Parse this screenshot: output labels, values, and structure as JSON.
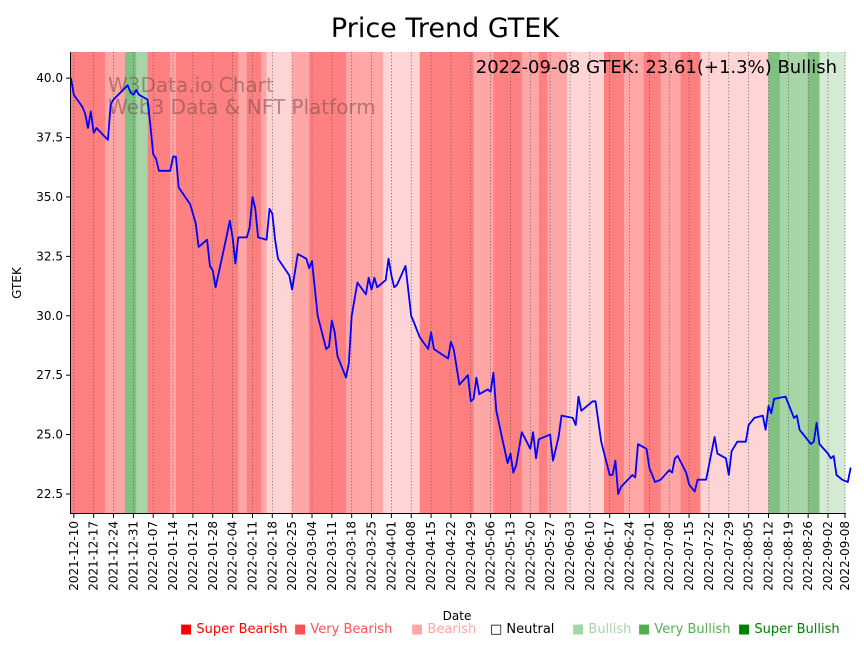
{
  "chart_data": {
    "type": "line",
    "title": "Price Trend GTEK",
    "xlabel": "Date",
    "ylabel": "GTEK",
    "ylim": [
      21.7,
      41.1
    ],
    "xlim": [
      "2021-12-09",
      "2022-09-08"
    ],
    "yticks": [
      22.5,
      25.0,
      27.5,
      30.0,
      32.5,
      35.0,
      37.5,
      40.0
    ],
    "ytick_labels": [
      "22.5",
      "25.0",
      "27.5",
      "30.0",
      "32.5",
      "35.0",
      "37.5",
      "40.0"
    ],
    "xticks": [
      "2021-12-10",
      "2021-12-17",
      "2021-12-24",
      "2021-12-31",
      "2022-01-07",
      "2022-01-14",
      "2022-01-21",
      "2022-01-28",
      "2022-02-04",
      "2022-02-11",
      "2022-02-18",
      "2022-02-25",
      "2022-03-04",
      "2022-03-11",
      "2022-03-18",
      "2022-03-25",
      "2022-04-01",
      "2022-04-08",
      "2022-04-15",
      "2022-04-22",
      "2022-04-29",
      "2022-05-06",
      "2022-05-13",
      "2022-05-20",
      "2022-05-27",
      "2022-06-03",
      "2022-06-10",
      "2022-06-17",
      "2022-06-24",
      "2022-07-01",
      "2022-07-08",
      "2022-07-15",
      "2022-07-22",
      "2022-07-29",
      "2022-08-05",
      "2022-08-12",
      "2022-08-19",
      "2022-08-26",
      "2022-09-02",
      "2022-09-08"
    ],
    "grid": "vertical dotted at x ticks",
    "annotation": "2022-09-08 GTEK: 23.61(+1.3%) Bullish",
    "watermark": [
      "W3Data.io Chart",
      "Web3 Data & NFT Platform"
    ],
    "series": [
      {
        "name": "GTEK",
        "color": "#0000ff",
        "points": [
          [
            "2021-12-09",
            40.0
          ],
          [
            "2021-12-10",
            39.3
          ],
          [
            "2021-12-13",
            38.8
          ],
          [
            "2021-12-14",
            38.5
          ],
          [
            "2021-12-15",
            37.9
          ],
          [
            "2021-12-16",
            38.6
          ],
          [
            "2021-12-17",
            37.7
          ],
          [
            "2021-12-18",
            37.9
          ],
          [
            "2021-12-22",
            37.4
          ],
          [
            "2021-12-23",
            38.9
          ],
          [
            "2021-12-24",
            39.1
          ],
          [
            "2021-12-29",
            39.7
          ],
          [
            "2021-12-30",
            39.4
          ],
          [
            "2021-12-31",
            39.3
          ],
          [
            "2022-01-01",
            39.5
          ],
          [
            "2022-01-02",
            39.3
          ],
          [
            "2022-01-05",
            39.1
          ],
          [
            "2022-01-06",
            38.0
          ],
          [
            "2022-01-07",
            36.8
          ],
          [
            "2022-01-08",
            36.6
          ],
          [
            "2022-01-09",
            36.1
          ],
          [
            "2022-01-13",
            36.1
          ],
          [
            "2022-01-14",
            36.7
          ],
          [
            "2022-01-15",
            36.7
          ],
          [
            "2022-01-16",
            35.4
          ],
          [
            "2022-01-20",
            34.7
          ],
          [
            "2022-01-22",
            33.9
          ],
          [
            "2022-01-23",
            32.9
          ],
          [
            "2022-01-26",
            33.2
          ],
          [
            "2022-01-27",
            32.1
          ],
          [
            "2022-01-28",
            31.9
          ],
          [
            "2022-01-29",
            31.2
          ],
          [
            "2022-02-02",
            33.4
          ],
          [
            "2022-02-03",
            34.0
          ],
          [
            "2022-02-04",
            33.3
          ],
          [
            "2022-02-05",
            32.2
          ],
          [
            "2022-02-06",
            33.3
          ],
          [
            "2022-02-09",
            33.3
          ],
          [
            "2022-02-10",
            33.7
          ],
          [
            "2022-02-11",
            35.0
          ],
          [
            "2022-02-12",
            34.5
          ],
          [
            "2022-02-13",
            33.3
          ],
          [
            "2022-02-16",
            33.2
          ],
          [
            "2022-02-17",
            34.5
          ],
          [
            "2022-02-18",
            34.3
          ],
          [
            "2022-02-19",
            33.2
          ],
          [
            "2022-02-20",
            32.4
          ],
          [
            "2022-02-24",
            31.7
          ],
          [
            "2022-02-25",
            31.1
          ],
          [
            "2022-02-27",
            32.6
          ],
          [
            "2022-03-02",
            32.4
          ],
          [
            "2022-03-03",
            32.0
          ],
          [
            "2022-03-04",
            32.3
          ],
          [
            "2022-03-06",
            30.0
          ],
          [
            "2022-03-09",
            28.6
          ],
          [
            "2022-03-10",
            28.7
          ],
          [
            "2022-03-11",
            29.8
          ],
          [
            "2022-03-12",
            29.3
          ],
          [
            "2022-03-13",
            28.3
          ],
          [
            "2022-03-16",
            27.4
          ],
          [
            "2022-03-17",
            28.0
          ],
          [
            "2022-03-18",
            30.0
          ],
          [
            "2022-03-20",
            31.4
          ],
          [
            "2022-03-23",
            30.9
          ],
          [
            "2022-03-24",
            31.6
          ],
          [
            "2022-03-25",
            31.1
          ],
          [
            "2022-03-26",
            31.6
          ],
          [
            "2022-03-27",
            31.2
          ],
          [
            "2022-03-30",
            31.5
          ],
          [
            "2022-03-31",
            32.4
          ],
          [
            "2022-04-01",
            31.7
          ],
          [
            "2022-04-02",
            31.2
          ],
          [
            "2022-04-03",
            31.3
          ],
          [
            "2022-04-06",
            32.1
          ],
          [
            "2022-04-08",
            30.0
          ],
          [
            "2022-04-09",
            29.7
          ],
          [
            "2022-04-11",
            29.1
          ],
          [
            "2022-04-14",
            28.6
          ],
          [
            "2022-04-15",
            29.3
          ],
          [
            "2022-04-16",
            28.6
          ],
          [
            "2022-04-21",
            28.2
          ],
          [
            "2022-04-22",
            28.9
          ],
          [
            "2022-04-23",
            28.6
          ],
          [
            "2022-04-25",
            27.1
          ],
          [
            "2022-04-28",
            27.5
          ],
          [
            "2022-04-29",
            26.4
          ],
          [
            "2022-04-30",
            26.5
          ],
          [
            "2022-05-01",
            27.4
          ],
          [
            "2022-05-02",
            26.7
          ],
          [
            "2022-05-05",
            26.9
          ],
          [
            "2022-05-06",
            26.8
          ],
          [
            "2022-05-07",
            27.6
          ],
          [
            "2022-05-08",
            26.0
          ],
          [
            "2022-05-10",
            24.9
          ],
          [
            "2022-05-12",
            23.8
          ],
          [
            "2022-05-13",
            24.2
          ],
          [
            "2022-05-14",
            23.4
          ],
          [
            "2022-05-15",
            23.7
          ],
          [
            "2022-05-17",
            25.1
          ],
          [
            "2022-05-20",
            24.4
          ],
          [
            "2022-05-21",
            25.1
          ],
          [
            "2022-05-22",
            24.0
          ],
          [
            "2022-05-23",
            24.8
          ],
          [
            "2022-05-27",
            25.0
          ],
          [
            "2022-05-28",
            23.9
          ],
          [
            "2022-05-30",
            24.9
          ],
          [
            "2022-05-31",
            25.8
          ],
          [
            "2022-06-04",
            25.7
          ],
          [
            "2022-06-05",
            25.4
          ],
          [
            "2022-06-06",
            26.6
          ],
          [
            "2022-06-07",
            26.0
          ],
          [
            "2022-06-09",
            26.2
          ],
          [
            "2022-06-11",
            26.4
          ],
          [
            "2022-06-12",
            26.4
          ],
          [
            "2022-06-14",
            24.7
          ],
          [
            "2022-06-17",
            23.3
          ],
          [
            "2022-06-18",
            23.3
          ],
          [
            "2022-06-19",
            23.9
          ],
          [
            "2022-06-20",
            22.5
          ],
          [
            "2022-06-21",
            22.8
          ],
          [
            "2022-06-25",
            23.3
          ],
          [
            "2022-06-26",
            23.2
          ],
          [
            "2022-06-27",
            24.6
          ],
          [
            "2022-06-30",
            24.4
          ],
          [
            "2022-07-01",
            23.6
          ],
          [
            "2022-07-03",
            23.0
          ],
          [
            "2022-07-05",
            23.1
          ],
          [
            "2022-07-08",
            23.5
          ],
          [
            "2022-07-09",
            23.4
          ],
          [
            "2022-07-10",
            24.0
          ],
          [
            "2022-07-11",
            24.1
          ],
          [
            "2022-07-14",
            23.4
          ],
          [
            "2022-07-15",
            22.9
          ],
          [
            "2022-07-17",
            22.6
          ],
          [
            "2022-07-18",
            23.1
          ],
          [
            "2022-07-21",
            23.1
          ],
          [
            "2022-07-24",
            24.9
          ],
          [
            "2022-07-25",
            24.2
          ],
          [
            "2022-07-28",
            24.0
          ],
          [
            "2022-07-29",
            23.3
          ],
          [
            "2022-07-30",
            24.3
          ],
          [
            "2022-08-01",
            24.7
          ],
          [
            "2022-08-04",
            24.7
          ],
          [
            "2022-08-05",
            25.4
          ],
          [
            "2022-08-07",
            25.7
          ],
          [
            "2022-08-10",
            25.8
          ],
          [
            "2022-08-11",
            25.2
          ],
          [
            "2022-08-12",
            26.2
          ],
          [
            "2022-08-13",
            25.9
          ],
          [
            "2022-08-14",
            26.5
          ],
          [
            "2022-08-18",
            26.6
          ],
          [
            "2022-08-19",
            26.3
          ],
          [
            "2022-08-21",
            25.7
          ],
          [
            "2022-08-22",
            25.8
          ],
          [
            "2022-08-23",
            25.2
          ],
          [
            "2022-08-27",
            24.6
          ],
          [
            "2022-08-28",
            24.7
          ],
          [
            "2022-08-29",
            25.5
          ],
          [
            "2022-08-30",
            24.6
          ],
          [
            "2022-09-02",
            24.2
          ],
          [
            "2022-09-03",
            24.0
          ],
          [
            "2022-09-04",
            24.1
          ],
          [
            "2022-09-05",
            23.3
          ],
          [
            "2022-09-07",
            23.1
          ],
          [
            "2022-09-09",
            23.0
          ],
          [
            "2022-09-10",
            23.61
          ]
        ]
      }
    ],
    "sentiment_bands": [
      {
        "start": "2021-12-09",
        "end": "2021-12-21",
        "level": "Very Bearish"
      },
      {
        "start": "2021-12-21",
        "end": "2021-12-28",
        "level": "Bearish"
      },
      {
        "start": "2021-12-28",
        "end": "2022-01-01",
        "level": "Very Bullish"
      },
      {
        "start": "2022-01-01",
        "end": "2022-01-05",
        "level": "Bullish"
      },
      {
        "start": "2022-01-05",
        "end": "2022-01-13",
        "level": "Very Bearish"
      },
      {
        "start": "2022-01-13",
        "end": "2022-01-15",
        "level": "Bearish"
      },
      {
        "start": "2022-01-15",
        "end": "2022-01-30",
        "level": "Very Bearish"
      },
      {
        "start": "2022-01-30",
        "end": "2022-02-06",
        "level": "Very Bearish"
      },
      {
        "start": "2022-02-06",
        "end": "2022-02-09",
        "level": "Bearish"
      },
      {
        "start": "2022-02-09",
        "end": "2022-02-14",
        "level": "Very Bearish"
      },
      {
        "start": "2022-02-14",
        "end": "2022-02-16",
        "level": "Bearish"
      },
      {
        "start": "2022-02-16",
        "end": "2022-02-25",
        "level": "Neutral-Bearish"
      },
      {
        "start": "2022-02-25",
        "end": "2022-03-03",
        "level": "Bearish"
      },
      {
        "start": "2022-03-03",
        "end": "2022-03-16",
        "level": "Very Bearish"
      },
      {
        "start": "2022-03-16",
        "end": "2022-03-29",
        "level": "Bearish"
      },
      {
        "start": "2022-03-29",
        "end": "2022-04-11",
        "level": "Neutral-Bearish"
      },
      {
        "start": "2022-04-11",
        "end": "2022-04-30",
        "level": "Very Bearish"
      },
      {
        "start": "2022-04-30",
        "end": "2022-05-07",
        "level": "Bearish"
      },
      {
        "start": "2022-05-07",
        "end": "2022-05-17",
        "level": "Very Bearish"
      },
      {
        "start": "2022-05-17",
        "end": "2022-05-23",
        "level": "Bearish"
      },
      {
        "start": "2022-05-23",
        "end": "2022-05-26",
        "level": "Very Bearish"
      },
      {
        "start": "2022-05-26",
        "end": "2022-06-02",
        "level": "Bearish"
      },
      {
        "start": "2022-06-02",
        "end": "2022-06-15",
        "level": "Neutral-Bearish"
      },
      {
        "start": "2022-06-15",
        "end": "2022-06-22",
        "level": "Very Bearish"
      },
      {
        "start": "2022-06-22",
        "end": "2022-06-29",
        "level": "Bearish"
      },
      {
        "start": "2022-06-29",
        "end": "2022-07-05",
        "level": "Very Bearish"
      },
      {
        "start": "2022-07-05",
        "end": "2022-07-12",
        "level": "Bearish"
      },
      {
        "start": "2022-07-12",
        "end": "2022-07-19",
        "level": "Very Bearish"
      },
      {
        "start": "2022-07-19",
        "end": "2022-08-12",
        "level": "Neutral-Bearish"
      },
      {
        "start": "2022-08-12",
        "end": "2022-08-16",
        "level": "Very Bullish"
      },
      {
        "start": "2022-08-16",
        "end": "2022-08-26",
        "level": "Bullish"
      },
      {
        "start": "2022-08-26",
        "end": "2022-08-30",
        "level": "Very Bullish"
      },
      {
        "start": "2022-08-30",
        "end": "2022-09-08",
        "level": "Slight Bullish"
      }
    ],
    "band_colors": {
      "Very Bearish": "#ff8080",
      "Bearish": "#ffa6a6",
      "Neutral-Bearish": "#ffd4d4",
      "Very Bullish": "#80c080",
      "Bullish": "#a8d5a8",
      "Slight Bullish": "#d4ead4"
    },
    "legend": {
      "position": "bottom-right",
      "items": [
        {
          "label": "Super Bearish",
          "color": "#ff0000",
          "marker": "■"
        },
        {
          "label": "Very Bearish",
          "color": "#ff5050",
          "marker": "■"
        },
        {
          "label": "Bearish",
          "color": "#ffa6a6",
          "marker": "■"
        },
        {
          "label": "Neutral",
          "color": "#000000",
          "marker": "□"
        },
        {
          "label": "Bullish",
          "color": "#a8d5a8",
          "marker": "■"
        },
        {
          "label": "Very Bullish",
          "color": "#50b050",
          "marker": "■"
        },
        {
          "label": "Super Bullish",
          "color": "#008000",
          "marker": "■"
        }
      ]
    }
  }
}
